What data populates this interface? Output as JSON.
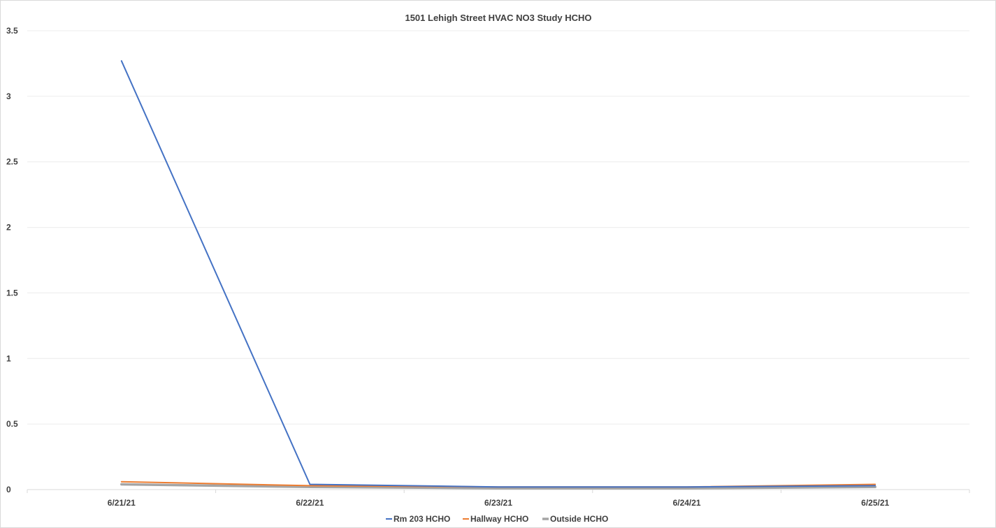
{
  "chart_data": {
    "type": "line",
    "title": "1501 Lehigh Street HVAC NO3 Study HCHO",
    "xlabel": "",
    "ylabel": "",
    "categories": [
      "6/21/21",
      "6/22/21",
      "6/23/21",
      "6/24/21",
      "6/25/21"
    ],
    "ylim": [
      0,
      3.5
    ],
    "yticks": [
      "0",
      "0.5",
      "1",
      "1.5",
      "2",
      "2.5",
      "3",
      "3.5"
    ],
    "grid": true,
    "legend_position": "bottom",
    "series": [
      {
        "name": "Rm 203 HCHO",
        "color": "#4472c4",
        "values": [
          3.27,
          0.04,
          0.02,
          0.02,
          0.03
        ]
      },
      {
        "name": "Hallway HCHO",
        "color": "#ed7d31",
        "values": [
          0.06,
          0.03,
          0.02,
          0.02,
          0.04
        ]
      },
      {
        "name": "Outside HCHO",
        "color": "#a5a5a5",
        "values": [
          0.04,
          0.02,
          0.01,
          0.01,
          0.02
        ]
      }
    ]
  }
}
